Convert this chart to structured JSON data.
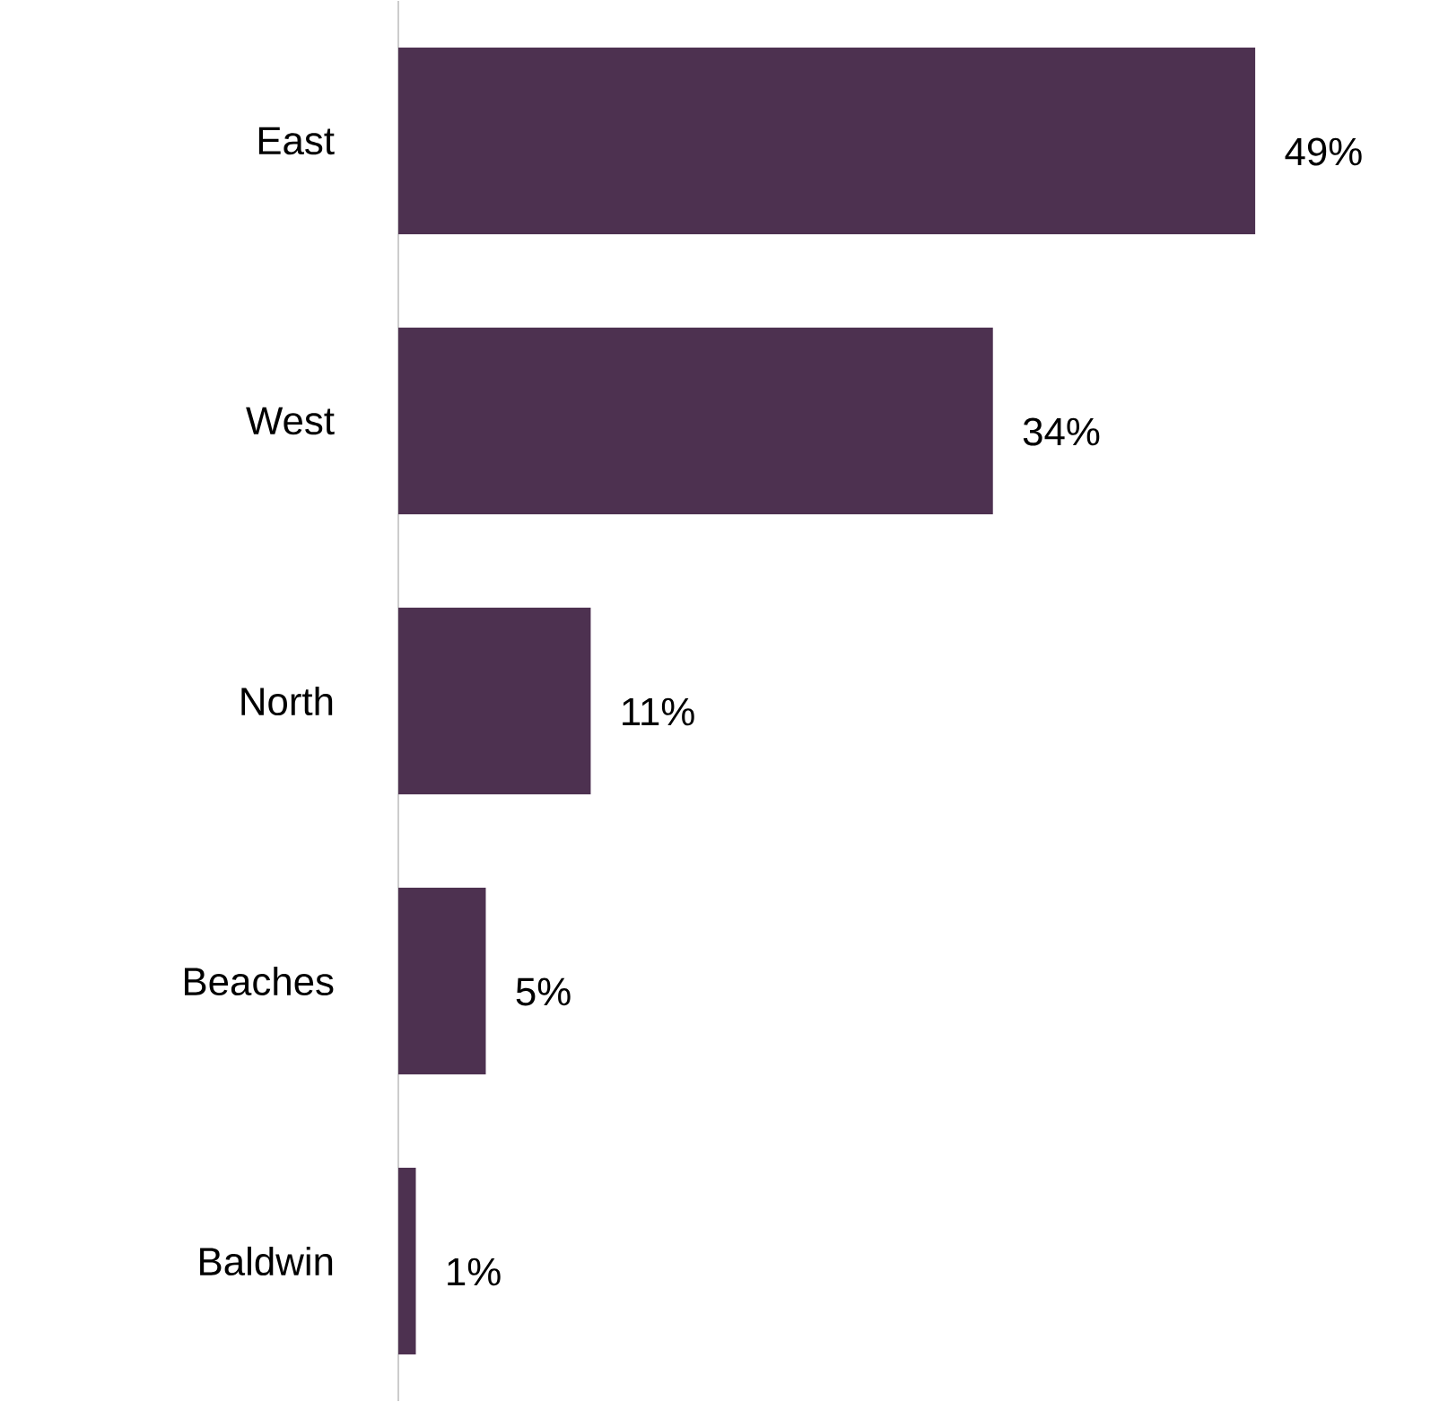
{
  "chart_data": {
    "type": "bar",
    "orientation": "horizontal",
    "categories": [
      "East",
      "West",
      "North",
      "Beaches",
      "Baldwin"
    ],
    "values": [
      49,
      34,
      11,
      5,
      1
    ],
    "value_labels": [
      "49%",
      "34%",
      "11%",
      "5%",
      "1%"
    ],
    "color": "#4d3150"
  }
}
